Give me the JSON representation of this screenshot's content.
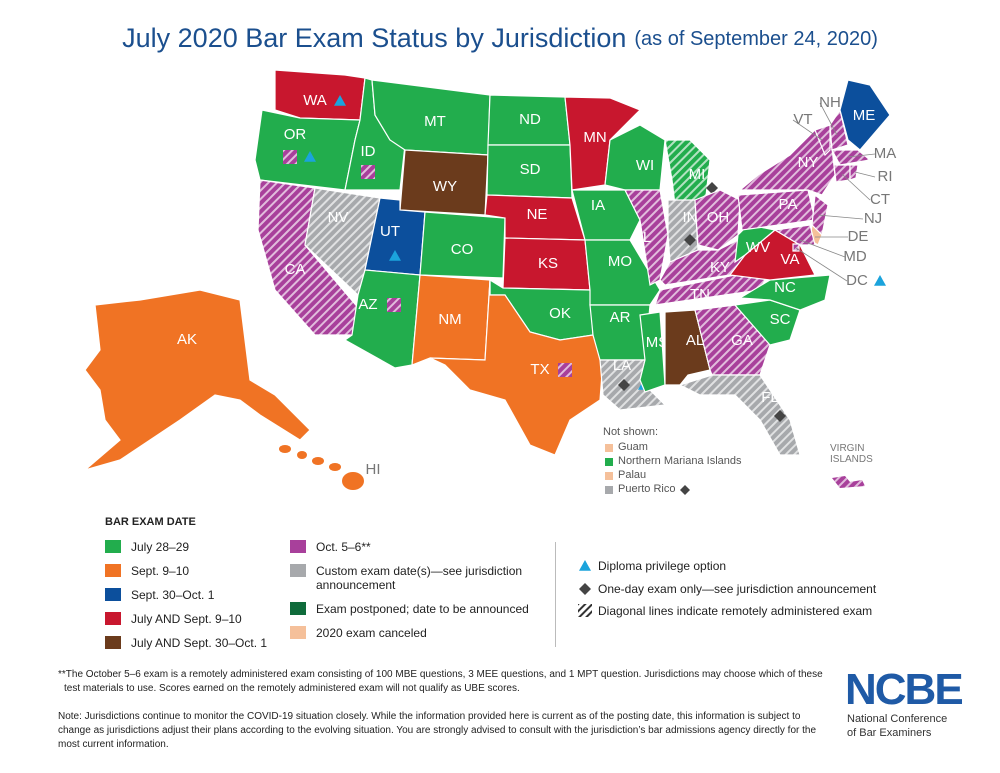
{
  "title": "July 2020 Bar Exam Status by Jurisdiction",
  "subtitle": "(as of September 24, 2020)",
  "legend": {
    "title": "BAR EXAM DATE",
    "items": [
      {
        "label": "July 28–29",
        "color": "#22ad4d"
      },
      {
        "label": "Sept. 9–10",
        "color": "#f07324"
      },
      {
        "label": "Sept. 30–Oct. 1",
        "color": "#0c4f9c"
      },
      {
        "label": "July AND Sept. 9–10",
        "color": "#c8172e"
      },
      {
        "label": "July AND Sept. 30–Oct. 1",
        "color": "#6b3b1c"
      },
      {
        "label": "Oct. 5–6**",
        "color": "#a8409b"
      },
      {
        "label": "Custom exam date(s)—see jurisdiction announcement",
        "color": "#a7a9ac"
      },
      {
        "label": "Exam postponed; date to be announced",
        "color": "#0f6b3b"
      },
      {
        "label": "2020 exam canceled",
        "color": "#f5c09a"
      }
    ]
  },
  "symbols": {
    "diploma": "Diploma privilege option",
    "one_day": "One-day exam only—see jurisdiction announcement",
    "remote": "Diagonal lines indicate remotely administered exam"
  },
  "not_shown": {
    "title": "Not shown:",
    "items": [
      {
        "label": "Guam",
        "color": "#f5c09a"
      },
      {
        "label": "Northern Mariana Islands",
        "color": "#22ad4d"
      },
      {
        "label": "Palau",
        "color": "#f5c09a"
      },
      {
        "label": "Puerto Rico",
        "color": "#a7a9ac",
        "one_day": true
      }
    ]
  },
  "virgin_islands": {
    "label": "VIRGIN ISLANDS",
    "color": "#a8409b",
    "remote": true
  },
  "jurisdictions": [
    {
      "label": "WA",
      "color": "#c8172e",
      "diploma": true
    },
    {
      "label": "OR",
      "color": "#22ad4d",
      "remote_badge": true,
      "diploma": true
    },
    {
      "label": "CA",
      "color": "#a8409b",
      "remote": true
    },
    {
      "label": "NV",
      "color": "#a7a9ac",
      "remote": true
    },
    {
      "label": "ID",
      "color": "#22ad4d",
      "remote_badge": true
    },
    {
      "label": "MT",
      "color": "#22ad4d"
    },
    {
      "label": "WY",
      "color": "#6b3b1c"
    },
    {
      "label": "UT",
      "color": "#0c4f9c",
      "diploma": true
    },
    {
      "label": "AZ",
      "color": "#22ad4d",
      "remote_badge": true
    },
    {
      "label": "CO",
      "color": "#22ad4d"
    },
    {
      "label": "NM",
      "color": "#f07324"
    },
    {
      "label": "ND",
      "color": "#22ad4d"
    },
    {
      "label": "SD",
      "color": "#22ad4d"
    },
    {
      "label": "NE",
      "color": "#c8172e"
    },
    {
      "label": "KS",
      "color": "#c8172e"
    },
    {
      "label": "OK",
      "color": "#22ad4d"
    },
    {
      "label": "TX",
      "color": "#f07324",
      "remote_badge": true
    },
    {
      "label": "MN",
      "color": "#c8172e"
    },
    {
      "label": "IA",
      "color": "#22ad4d"
    },
    {
      "label": "MO",
      "color": "#22ad4d"
    },
    {
      "label": "AR",
      "color": "#22ad4d"
    },
    {
      "label": "LA",
      "color": "#a7a9ac",
      "remote": true,
      "one_day": true,
      "diploma": true
    },
    {
      "label": "WI",
      "color": "#22ad4d"
    },
    {
      "label": "MI",
      "color": "#22ad4d",
      "remote": true,
      "one_day": true
    },
    {
      "label": "IL",
      "color": "#a8409b",
      "remote": true
    },
    {
      "label": "IN",
      "color": "#a7a9ac",
      "remote": true,
      "one_day": true
    },
    {
      "label": "OH",
      "color": "#a8409b",
      "remote": true
    },
    {
      "label": "KY",
      "color": "#a8409b",
      "remote": true
    },
    {
      "label": "TN",
      "color": "#a8409b",
      "remote": true
    },
    {
      "label": "MS",
      "color": "#22ad4d"
    },
    {
      "label": "AL",
      "color": "#6b3b1c"
    },
    {
      "label": "GA",
      "color": "#a8409b",
      "remote": true
    },
    {
      "label": "FL",
      "color": "#a7a9ac",
      "remote": true,
      "one_day": true
    },
    {
      "label": "SC",
      "color": "#22ad4d"
    },
    {
      "label": "NC",
      "color": "#22ad4d"
    },
    {
      "label": "VA",
      "color": "#c8172e"
    },
    {
      "label": "WV",
      "color": "#22ad4d"
    },
    {
      "label": "PA",
      "color": "#a8409b",
      "remote": true
    },
    {
      "label": "NY",
      "color": "#a8409b",
      "remote": true
    },
    {
      "label": "VT",
      "color": "#a8409b",
      "remote": true
    },
    {
      "label": "NH",
      "color": "#a8409b",
      "remote": true
    },
    {
      "label": "ME",
      "color": "#0c4f9c"
    },
    {
      "label": "MA",
      "color": "#a8409b",
      "remote": true
    },
    {
      "label": "CT",
      "color": "#a8409b",
      "remote": true
    },
    {
      "label": "RI",
      "color": "#a8409b",
      "remote": true
    },
    {
      "label": "NJ",
      "color": "#a8409b",
      "remote": true
    },
    {
      "label": "DE",
      "color": "#f5c09a"
    },
    {
      "label": "MD",
      "color": "#a8409b",
      "remote": true
    },
    {
      "label": "DC",
      "color": "#a8409b",
      "remote": true,
      "diploma": true
    },
    {
      "label": "AK",
      "color": "#f07324"
    },
    {
      "label": "HI",
      "color": "#f07324"
    }
  ],
  "footnote": "**The October 5–6 exam is a remotely administered exam consisting of 100 MBE questions, 3 MEE questions, and 1 MPT question. Jurisdictions may choose which of these test materials to use. Scores earned on the remotely administered exam will not qualify as UBE scores.",
  "note": "Note: Jurisdictions continue to monitor the COVID-19 situation closely. While the information provided here is current as of the posting date, this information is subject to change as jurisdictions adjust their plans according to the evolving situation. You are strongly advised to consult with the jurisdiction’s bar admissions agency directly for the most current information.",
  "logo": {
    "name": "NCBE",
    "lines": [
      "National Conference",
      "of Bar Examiners"
    ]
  }
}
